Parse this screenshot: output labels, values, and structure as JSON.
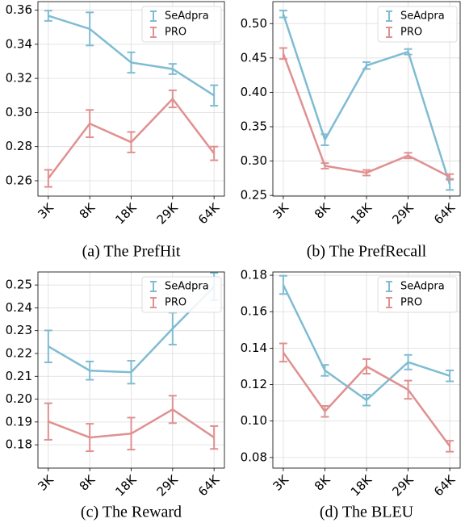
{
  "chart_data": [
    {
      "type": "line",
      "caption": "(a) The PrefHit",
      "categories": [
        "3K",
        "8K",
        "18K",
        "29K",
        "64K"
      ],
      "series": [
        {
          "name": "SeAdpra",
          "color": "#7fbcd2",
          "values": [
            0.3567,
            0.349,
            0.3293,
            0.3255,
            0.31
          ],
          "errors": [
            0.003,
            0.0097,
            0.006,
            0.003,
            0.006
          ]
        },
        {
          "name": "PRO",
          "color": "#e09090",
          "values": [
            0.2614,
            0.2935,
            0.2826,
            0.308,
            0.276
          ],
          "errors": [
            0.005,
            0.008,
            0.006,
            0.005,
            0.004
          ]
        }
      ],
      "ylim": [
        0.251,
        0.365
      ],
      "yticks": [
        0.26,
        0.28,
        {
          "value": 0.3,
          "label": "0.30"
        },
        0.32,
        0.34,
        0.36
      ],
      "grid": true,
      "legend": "upper right"
    },
    {
      "type": "line",
      "caption": "(b) The PrefRecall",
      "categories": [
        "3K",
        "8K",
        "18K",
        "29K",
        "64K"
      ],
      "series": [
        {
          "name": "SeAdpra",
          "color": "#7fbcd2",
          "values": [
            0.514,
            0.331,
            0.439,
            0.459,
            0.266
          ],
          "errors": [
            0.005,
            0.008,
            0.005,
            0.004,
            0.008
          ]
        },
        {
          "name": "PRO",
          "color": "#e09090",
          "values": [
            0.4565,
            0.293,
            0.283,
            0.308,
            0.277
          ],
          "errors": [
            0.008,
            0.004,
            0.004,
            0.004,
            0.004
          ]
        }
      ],
      "ylim": [
        0.249,
        0.532
      ],
      "yticks": [
        0.25,
        {
          "value": 0.3,
          "label": "0.30"
        },
        0.35,
        {
          "value": 0.4,
          "label": "0.40"
        },
        0.45,
        {
          "value": 0.5,
          "label": "0.50"
        }
      ],
      "grid": true,
      "legend": "upper right"
    },
    {
      "type": "line",
      "caption": "(c) The Reward",
      "categories": [
        "3K",
        "8K",
        "18K",
        "29K",
        "64K"
      ],
      "series": [
        {
          "name": "SeAdpra",
          "color": "#7fbcd2",
          "values": [
            0.2231,
            0.2125,
            0.2118,
            0.2309,
            0.2493
          ],
          "errors": [
            0.007,
            0.004,
            0.005,
            0.007,
            0.006
          ]
        },
        {
          "name": "PRO",
          "color": "#e09090",
          "values": [
            0.1902,
            0.1832,
            0.1849,
            0.1955,
            0.1832
          ],
          "errors": [
            0.008,
            0.006,
            0.007,
            0.006,
            0.005
          ]
        }
      ],
      "ylim": [
        0.1698,
        0.2557
      ],
      "yticks": [
        0.18,
        0.19,
        {
          "value": 0.2,
          "label": "0.20"
        },
        0.21,
        0.22,
        0.23,
        0.24,
        0.25
      ],
      "grid": true,
      "legend": "upper right"
    },
    {
      "type": "line",
      "caption": "(d) The BLEU",
      "categories": [
        "3K",
        "8K",
        "18K",
        "29K",
        "64K"
      ],
      "series": [
        {
          "name": "SeAdpra",
          "color": "#7fbcd2",
          "values": [
            0.1747,
            0.1278,
            0.1115,
            0.1323,
            0.1248
          ],
          "errors": [
            0.005,
            0.003,
            0.003,
            0.004,
            0.003
          ]
        },
        {
          "name": "PRO",
          "color": "#e09090",
          "values": [
            0.1376,
            0.1053,
            0.13,
            0.1172,
            0.0862
          ],
          "errors": [
            0.005,
            0.003,
            0.004,
            0.005,
            0.003
          ]
        }
      ],
      "ylim": [
        0.0742,
        0.1818
      ],
      "yticks": [
        0.08,
        {
          "value": 0.1,
          "label": "0.10"
        },
        0.12,
        0.14,
        0.16,
        0.18
      ],
      "grid": true,
      "legend": "upper right"
    }
  ]
}
